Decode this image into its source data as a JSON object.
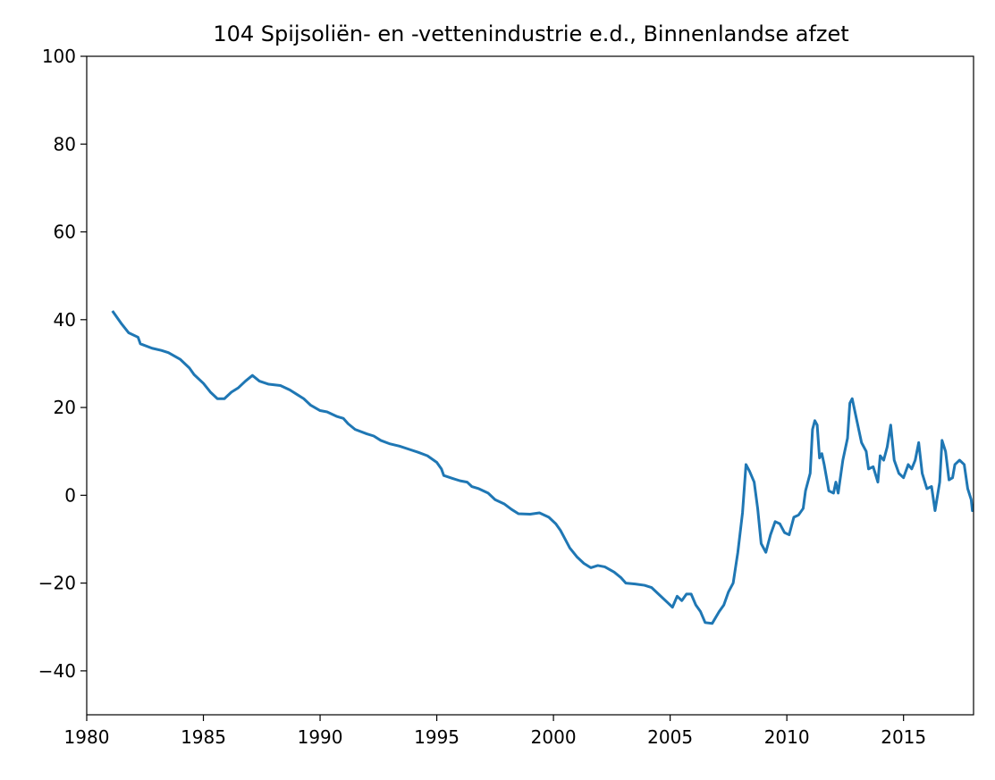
{
  "chart_data": {
    "type": "line",
    "title": "104 Spijsoliën- en -vettenindustrie e.d., Binnenlandse afzet",
    "x": [
      1981.1,
      1981.5,
      1981.8,
      1982.2,
      1982.3,
      1982.8,
      1983.2,
      1983.5,
      1984.0,
      1984.4,
      1984.6,
      1985.0,
      1985.3,
      1985.6,
      1985.9,
      1986.2,
      1986.5,
      1986.8,
      1987.1,
      1987.4,
      1987.8,
      1988.3,
      1988.7,
      1989.0,
      1989.3,
      1989.6,
      1990.0,
      1990.3,
      1990.7,
      1991.0,
      1991.2,
      1991.5,
      1992.0,
      1992.3,
      1992.6,
      1993.0,
      1993.4,
      1993.8,
      1994.2,
      1994.6,
      1995.0,
      1995.2,
      1995.3,
      1995.7,
      1996.0,
      1996.3,
      1996.5,
      1996.8,
      1997.2,
      1997.5,
      1997.9,
      1998.2,
      1998.5,
      1999.0,
      1999.4,
      1999.8,
      2000.1,
      2000.3,
      2000.5,
      2000.7,
      2001.0,
      2001.3,
      2001.6,
      2001.9,
      2002.2,
      2002.6,
      2002.9,
      2003.1,
      2003.5,
      2003.9,
      2004.2,
      2004.5,
      2004.9,
      2005.1,
      2005.3,
      2005.5,
      2005.7,
      2005.9,
      2006.1,
      2006.3,
      2006.5,
      2006.8,
      2007.1,
      2007.3,
      2007.5,
      2007.7,
      2007.9,
      2008.1,
      2008.25,
      2008.4,
      2008.6,
      2008.75,
      2008.9,
      2009.1,
      2009.3,
      2009.5,
      2009.7,
      2009.9,
      2010.1,
      2010.3,
      2010.5,
      2010.7,
      2010.8,
      2011.0,
      2011.1,
      2011.2,
      2011.3,
      2011.4,
      2011.5,
      2011.6,
      2011.8,
      2012.0,
      2012.1,
      2012.2,
      2012.4,
      2012.6,
      2012.7,
      2012.8,
      2013.0,
      2013.2,
      2013.4,
      2013.5,
      2013.7,
      2013.9,
      2014.0,
      2014.15,
      2014.3,
      2014.45,
      2014.6,
      2014.8,
      2015.0,
      2015.2,
      2015.35,
      2015.5,
      2015.65,
      2015.8,
      2016.0,
      2016.2,
      2016.35,
      2016.55,
      2016.65,
      2016.8,
      2016.95,
      2017.1,
      2017.2,
      2017.4,
      2017.6,
      2017.75,
      2017.9,
      2017.95,
      2018.0
    ],
    "series": [
      {
        "color": "#1f77b4",
        "values": [
          42,
          39,
          37,
          36,
          34.5,
          33.5,
          33,
          32.5,
          31,
          29,
          27.5,
          25.5,
          23.5,
          22,
          22,
          23.5,
          24.5,
          26,
          27.3,
          26,
          25.3,
          25,
          24,
          23,
          22,
          20.5,
          19.3,
          19,
          18,
          17.5,
          16.3,
          15,
          14,
          13.5,
          12.5,
          11.7,
          11.2,
          10.5,
          9.8,
          9,
          7.5,
          6,
          4.5,
          3.8,
          3.3,
          3,
          2,
          1.5,
          0.5,
          -1,
          -2,
          -3.2,
          -4.2,
          -4.3,
          -4,
          -5,
          -6.5,
          -8,
          -10,
          -12,
          -14,
          -15.5,
          -16.5,
          -16,
          -16.3,
          -17.5,
          -18.8,
          -20,
          -20.2,
          -20.5,
          -21,
          -22.5,
          -24.5,
          -25.5,
          -23,
          -24,
          -22.5,
          -22.5,
          -25,
          -26.5,
          -29,
          -29.2,
          -26.5,
          -25,
          -22,
          -20,
          -13,
          -4,
          7,
          5.5,
          3,
          -3,
          -11,
          -13,
          -9,
          -6,
          -6.5,
          -8.5,
          -9,
          -5,
          -4.5,
          -3,
          1,
          5,
          15,
          17,
          16,
          8.5,
          9.5,
          7,
          1,
          0.5,
          3,
          0.5,
          8,
          13,
          21,
          22,
          17,
          12,
          10,
          6,
          6.5,
          3,
          9,
          8,
          11,
          16,
          8,
          5,
          4,
          7,
          6,
          8,
          12,
          5,
          1.5,
          2,
          -3.5,
          3,
          12.5,
          10,
          3.5,
          4,
          7,
          8,
          7,
          1.5,
          -1,
          -3.5,
          -2
        ]
      }
    ],
    "xlim": [
      1980,
      2018
    ],
    "xticks": [
      1980,
      1985,
      1990,
      1995,
      2000,
      2005,
      2010,
      2015
    ],
    "ylim": [
      -50,
      100
    ],
    "yticks": [
      {
        "value": -40,
        "label": "−40"
      },
      {
        "value": -20,
        "label": "−20"
      },
      0,
      20,
      40,
      60,
      80,
      100
    ],
    "grid": false
  }
}
